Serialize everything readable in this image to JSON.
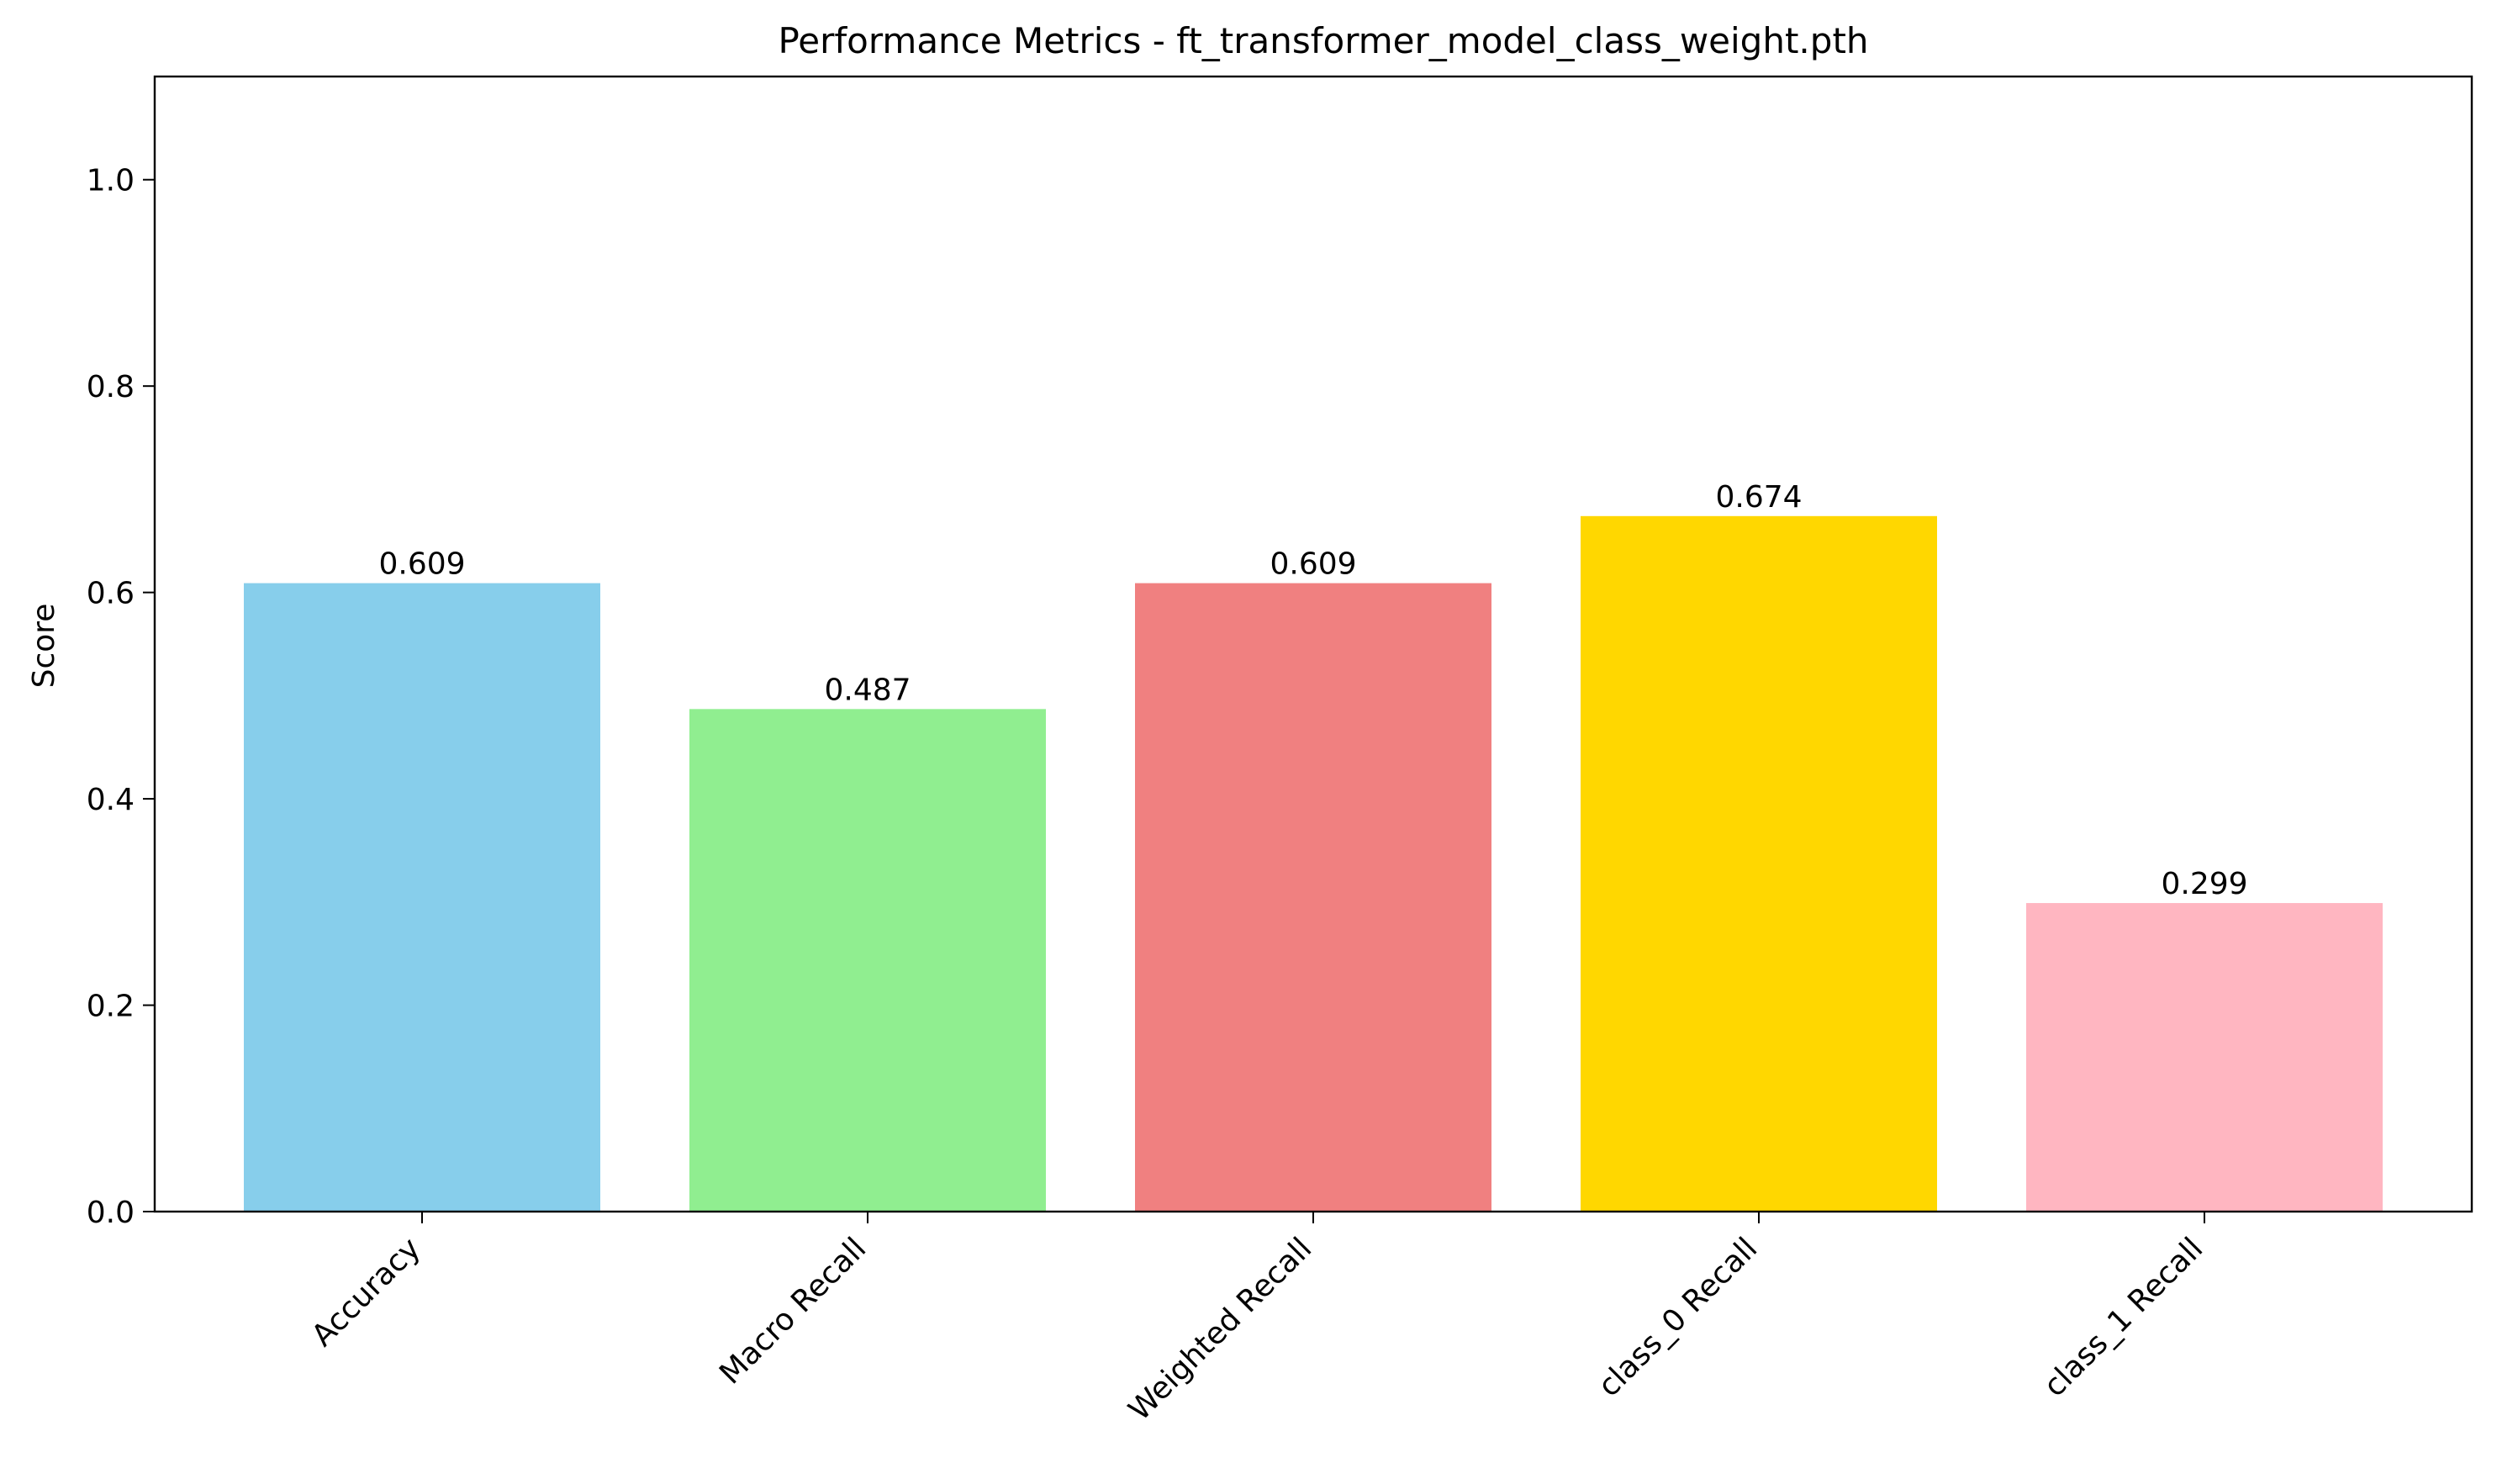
{
  "chart_data": {
    "type": "bar",
    "title": "Performance Metrics - ft_transformer_model_class_weight.pth",
    "xlabel": "",
    "ylabel": "Score",
    "ylim": [
      0,
      1.1
    ],
    "yticks": [
      0.0,
      0.2,
      0.4,
      0.6,
      0.8,
      1.0
    ],
    "ytick_labels": [
      "0.0",
      "0.2",
      "0.4",
      "0.6",
      "0.8",
      "1.0"
    ],
    "categories": [
      "Accuracy",
      "Macro Recall",
      "Weighted Recall",
      "class_0 Recall",
      "class_1 Recall"
    ],
    "values": [
      0.609,
      0.487,
      0.609,
      0.674,
      0.299
    ],
    "value_labels": [
      "0.609",
      "0.487",
      "0.609",
      "0.674",
      "0.299"
    ],
    "colors": [
      "#87CEEB",
      "#90EE90",
      "#F08080",
      "#FFD700",
      "#FFB6C1"
    ],
    "grid": false,
    "legend": "none"
  }
}
